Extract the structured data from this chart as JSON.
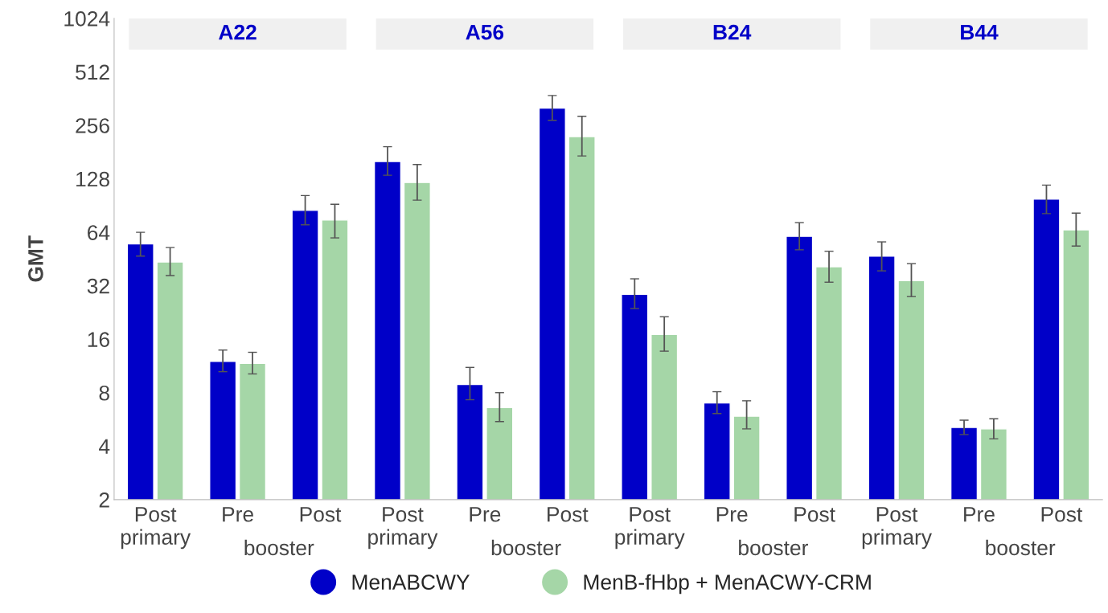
{
  "chart_data": {
    "type": "bar",
    "ylabel": "GMT",
    "categories": [
      "Post primary",
      "Pre",
      "Post",
      "Post primary",
      "Pre",
      "Post",
      "Post primary",
      "Pre",
      "Post",
      "Post primary",
      "Pre",
      "Post"
    ],
    "annotations": [
      "A22",
      "A56",
      "B24",
      "B44",
      "booster",
      "booster",
      "booster",
      "booster"
    ],
    "log": true,
    "ylim": [
      2,
      1024
    ],
    "yticks": [
      2,
      4,
      8,
      16,
      32,
      64,
      128,
      256,
      512,
      1024
    ],
    "legend": "bottom",
    "series": [
      {
        "name": "MenABCWY",
        "color": "#0000c8",
        "values": [
          55,
          12,
          85,
          160,
          8.9,
          320,
          28.6,
          7.0,
          60.7,
          47,
          5.1,
          98.5
        ],
        "errors": [
          [
            47,
            64
          ],
          [
            10.5,
            13.9
          ],
          [
            70.5,
            103
          ],
          [
            134,
            194
          ],
          [
            7.3,
            11.1
          ],
          [
            273,
            377
          ],
          [
            23.8,
            35
          ],
          [
            6.1,
            8.1
          ],
          [
            51,
            72.5
          ],
          [
            38.8,
            56.5
          ],
          [
            4.65,
            5.6
          ],
          [
            81.5,
            118
          ]
        ]
      },
      {
        "name": "MenB-fHbp + MenACWY-CRM",
        "color": "#a5d6a7",
        "values": [
          43.5,
          11.7,
          75,
          122,
          6.6,
          221,
          17,
          5.9,
          40.9,
          34.2,
          5.0,
          66
        ],
        "errors": [
          [
            36.5,
            52.5
          ],
          [
            10.2,
            13.5
          ],
          [
            59.5,
            92
          ],
          [
            97,
            154
          ],
          [
            5.5,
            8
          ],
          [
            172,
            288
          ],
          [
            13.7,
            21.4
          ],
          [
            5.0,
            7.2
          ],
          [
            33.5,
            50
          ],
          [
            27.8,
            42.6
          ],
          [
            4.4,
            5.7
          ],
          [
            53.5,
            82
          ]
        ]
      }
    ]
  }
}
